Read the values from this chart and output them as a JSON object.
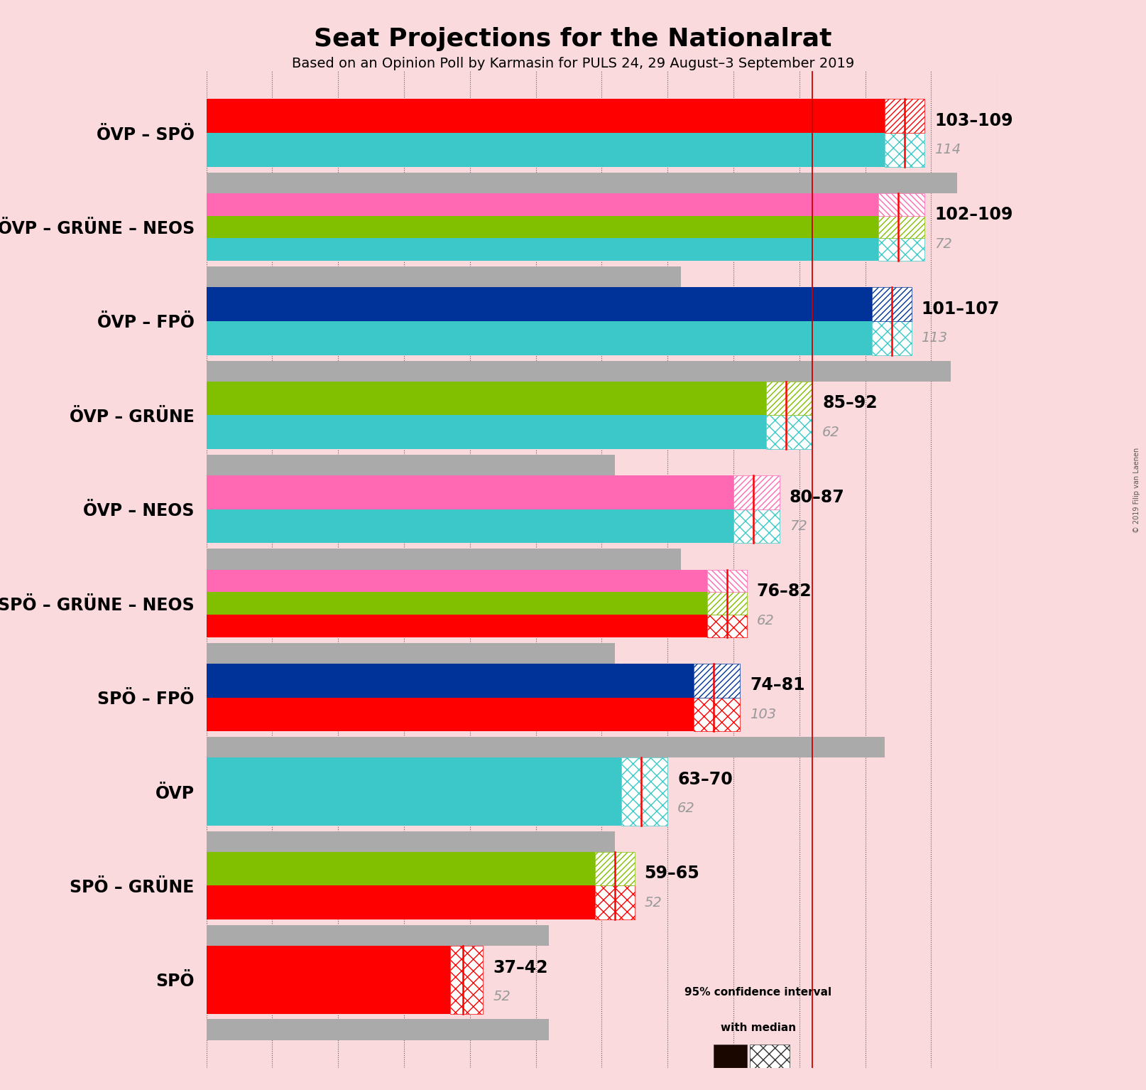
{
  "title": "Seat Projections for the Nationalrat",
  "subtitle": "Based on an Opinion Poll by Karmasin for PULS 24, 29 August–3 September 2019",
  "background_color": "#fadadd",
  "copyright": "© 2019 Filip van Laenen",
  "coalitions": [
    {
      "label": "ÖVP – SPÖ",
      "range_low": 103,
      "range_high": 109,
      "median": 106,
      "last_result": 114,
      "colors": [
        "#3CC8C8",
        "#FF0000"
      ]
    },
    {
      "label": "ÖVP – GRÜNE – NEOS",
      "range_low": 102,
      "range_high": 109,
      "median": 105,
      "last_result": 72,
      "colors": [
        "#3CC8C8",
        "#80C000",
        "#FF69B4"
      ]
    },
    {
      "label": "ÖVP – FPÖ",
      "range_low": 101,
      "range_high": 107,
      "median": 104,
      "last_result": 113,
      "colors": [
        "#3CC8C8",
        "#003399"
      ]
    },
    {
      "label": "ÖVP – GRÜNE",
      "range_low": 85,
      "range_high": 92,
      "median": 88,
      "last_result": 62,
      "colors": [
        "#3CC8C8",
        "#80C000"
      ]
    },
    {
      "label": "ÖVP – NEOS",
      "range_low": 80,
      "range_high": 87,
      "median": 83,
      "last_result": 72,
      "colors": [
        "#3CC8C8",
        "#FF69B4"
      ]
    },
    {
      "label": "SPÖ – GRÜNE – NEOS",
      "range_low": 76,
      "range_high": 82,
      "median": 79,
      "last_result": 62,
      "colors": [
        "#FF0000",
        "#80C000",
        "#FF69B4"
      ]
    },
    {
      "label": "SPÖ – FPÖ",
      "range_low": 74,
      "range_high": 81,
      "median": 77,
      "last_result": 103,
      "colors": [
        "#FF0000",
        "#003399"
      ]
    },
    {
      "label": "ÖVP",
      "range_low": 63,
      "range_high": 70,
      "median": 66,
      "last_result": 62,
      "colors": [
        "#3CC8C8"
      ]
    },
    {
      "label": "SPÖ – GRÜNE",
      "range_low": 59,
      "range_high": 65,
      "median": 62,
      "last_result": 52,
      "colors": [
        "#FF0000",
        "#80C000"
      ]
    },
    {
      "label": "SPÖ",
      "range_low": 37,
      "range_high": 42,
      "median": 39,
      "last_result": 52,
      "colors": [
        "#FF0000"
      ]
    }
  ],
  "xlim_max": 120,
  "majority_value": 92,
  "title_fontsize": 26,
  "subtitle_fontsize": 14,
  "label_fontsize": 17,
  "range_fontsize": 17,
  "last_fontsize": 14
}
